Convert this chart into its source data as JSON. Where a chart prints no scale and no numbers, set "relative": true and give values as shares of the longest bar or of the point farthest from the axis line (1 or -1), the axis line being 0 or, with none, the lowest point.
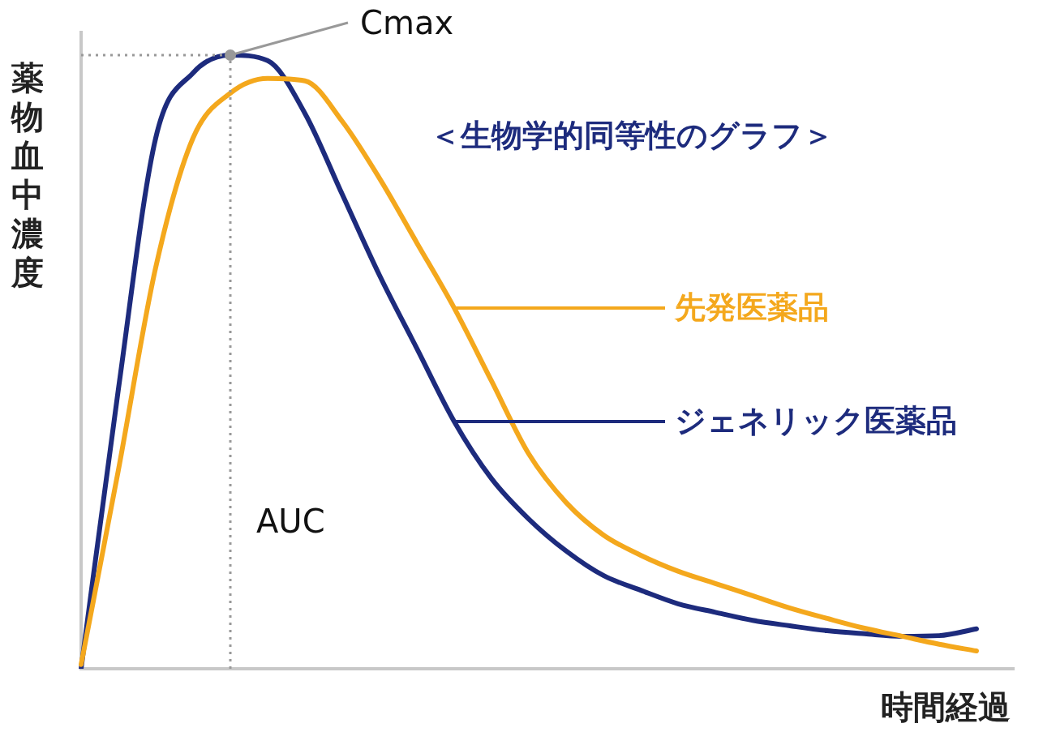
{
  "chart_data": {
    "type": "line",
    "title": "＜生物学的同等性のグラフ＞",
    "xlabel": "時間経過",
    "ylabel": "薬物血中濃度",
    "relative": true,
    "legend": false,
    "grid": false,
    "categories": [
      null,
      null,
      null,
      null,
      null,
      null,
      null,
      null,
      null,
      null,
      null,
      null,
      null,
      null,
      null,
      null,
      null,
      null,
      null,
      null,
      null,
      null,
      null,
      null,
      null,
      null
    ],
    "series": [
      {
        "name": "先発医薬品",
        "color": "#f4a81d",
        "values": [
          0.007,
          0.324,
          0.654,
          0.865,
          0.938,
          0.962,
          0.958,
          0.892,
          0.799,
          0.694,
          0.588,
          0.469,
          0.35,
          0.271,
          0.218,
          0.185,
          0.159,
          0.139,
          0.119,
          0.099,
          0.082,
          0.066,
          0.053,
          0.04,
          0.029,
          null
        ]
      },
      {
        "name": "ジェネリック医薬品",
        "color": "#1d2b7d",
        "values": [
          0,
          0.456,
          0.865,
          0.971,
          1,
          0.991,
          0.905,
          0.773,
          0.641,
          0.522,
          0.403,
          0.31,
          0.244,
          0.192,
          0.152,
          0.128,
          0.106,
          0.092,
          0.079,
          0.07,
          0.062,
          0.057,
          0.053,
          0.054,
          0.065,
          null
        ]
      }
    ],
    "ref_lines": [
      {
        "axis": "y",
        "value": 1,
        "color": "#999999",
        "line_style": "dotted"
      }
    ],
    "annotations": [
      "Cmax",
      "AUC"
    ]
  }
}
